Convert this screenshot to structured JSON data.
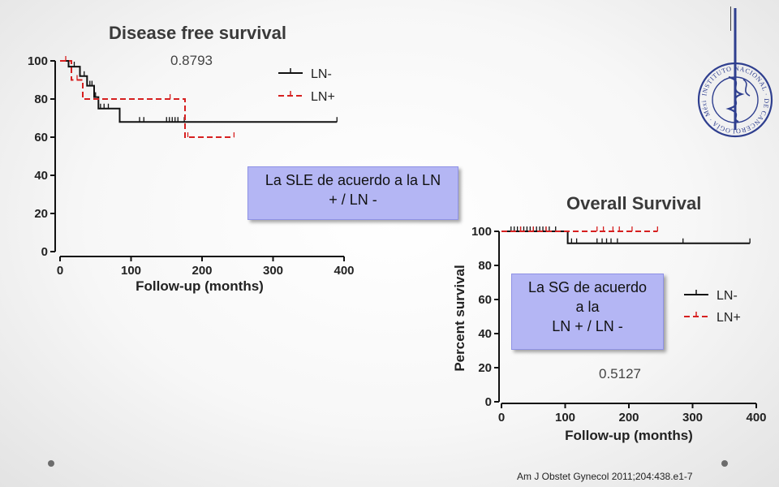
{
  "callouts": {
    "dfs_lines": [
      "La SLE de acuerdo a la LN",
      "+ / LN -"
    ],
    "os_lines": [
      "La SG de acuerdo",
      "a la",
      "LN + / LN -"
    ]
  },
  "citation": "Am J Obstet Gynecol 2011;204:438.e1-7",
  "logo": {
    "text_outer": "INSTITUTO NACIONAL DE CANCEROLOGÍA México",
    "color": "#2f3f8f"
  },
  "colors": {
    "ln_minus": "#111111",
    "ln_plus": "#d62020",
    "callout_bg": "#b4b6f4"
  },
  "chart_data": [
    {
      "type": "line",
      "title": "Disease free survival",
      "xlabel": "Follow-up (months)",
      "ylabel": "",
      "annotation": "0.8793",
      "xlim": [
        0,
        400
      ],
      "ylim": [
        0,
        100
      ],
      "xticks": [
        0,
        100,
        200,
        300,
        400
      ],
      "yticks": [
        0,
        20,
        40,
        60,
        80,
        100
      ],
      "legend_position": "top-right",
      "series": [
        {
          "name": "LN-",
          "style": "solid",
          "steps": [
            [
              0,
              100
            ],
            [
              12,
              100
            ],
            [
              12,
              97
            ],
            [
              28,
              97
            ],
            [
              28,
              92
            ],
            [
              38,
              92
            ],
            [
              38,
              87
            ],
            [
              48,
              87
            ],
            [
              48,
              81
            ],
            [
              54,
              81
            ],
            [
              54,
              75
            ],
            [
              84,
              75
            ],
            [
              84,
              68
            ],
            [
              390,
              68
            ]
          ],
          "censored": [
            [
              20,
              97
            ],
            [
              34,
              92
            ],
            [
              42,
              87
            ],
            [
              45,
              87
            ],
            [
              50,
              81
            ],
            [
              57,
              75
            ],
            [
              62,
              75
            ],
            [
              68,
              75
            ],
            [
              112,
              68
            ],
            [
              118,
              68
            ],
            [
              150,
              68
            ],
            [
              154,
              68
            ],
            [
              158,
              68
            ],
            [
              162,
              68
            ],
            [
              166,
              68
            ],
            [
              175,
              68
            ],
            [
              390,
              68
            ]
          ]
        },
        {
          "name": "LN+",
          "style": "dashed",
          "steps": [
            [
              0,
              100
            ],
            [
              16,
              100
            ],
            [
              16,
              90
            ],
            [
              32,
              90
            ],
            [
              32,
              80
            ],
            [
              176,
              80
            ],
            [
              176,
              60
            ],
            [
              245,
              60
            ]
          ],
          "censored": [
            [
              8,
              100
            ],
            [
              24,
              90
            ],
            [
              155,
              80
            ],
            [
              180,
              60
            ],
            [
              245,
              60
            ]
          ]
        }
      ]
    },
    {
      "type": "line",
      "title": "Overall Survival",
      "xlabel": "Follow-up (months)",
      "ylabel": "Percent survival",
      "annotation": "0.5127",
      "xlim": [
        0,
        400
      ],
      "ylim": [
        0,
        100
      ],
      "xticks": [
        0,
        100,
        200,
        300,
        400
      ],
      "yticks": [
        0,
        20,
        40,
        60,
        80,
        100
      ],
      "legend_position": "center-right",
      "series": [
        {
          "name": "LN-",
          "style": "solid",
          "steps": [
            [
              0,
              100
            ],
            [
              104,
              100
            ],
            [
              104,
              93
            ],
            [
              390,
              93
            ]
          ],
          "censored": [
            [
              15,
              100
            ],
            [
              20,
              100
            ],
            [
              25,
              100
            ],
            [
              30,
              100
            ],
            [
              35,
              100
            ],
            [
              40,
              100
            ],
            [
              45,
              100
            ],
            [
              50,
              100
            ],
            [
              55,
              100
            ],
            [
              60,
              100
            ],
            [
              65,
              100
            ],
            [
              70,
              100
            ],
            [
              75,
              100
            ],
            [
              85,
              100
            ],
            [
              110,
              93
            ],
            [
              118,
              93
            ],
            [
              150,
              93
            ],
            [
              158,
              93
            ],
            [
              165,
              93
            ],
            [
              172,
              93
            ],
            [
              182,
              93
            ],
            [
              285,
              93
            ],
            [
              390,
              93
            ]
          ]
        },
        {
          "name": "LN+",
          "style": "dashed",
          "steps": [
            [
              0,
              100
            ],
            [
              245,
              100
            ]
          ],
          "censored": [
            [
              30,
              100
            ],
            [
              50,
              100
            ],
            [
              70,
              100
            ],
            [
              150,
              100
            ],
            [
              160,
              100
            ],
            [
              175,
              100
            ],
            [
              185,
              100
            ],
            [
              205,
              100
            ],
            [
              245,
              100
            ]
          ]
        }
      ]
    }
  ]
}
